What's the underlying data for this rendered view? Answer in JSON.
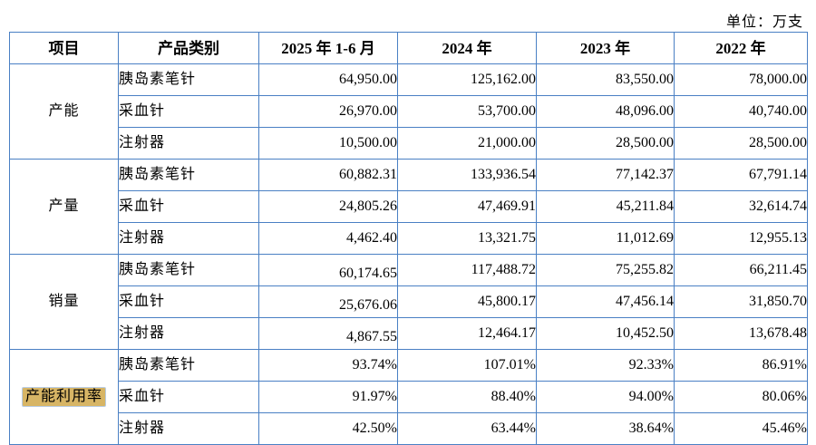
{
  "unit_label": "单位：万支",
  "colors": {
    "border": "#4a80c4",
    "highlight": "#d7b565"
  },
  "table": {
    "headers": [
      "项目",
      "产品类别",
      "2025 年 1-6 月",
      "2024 年",
      "2023 年",
      "2022 年"
    ],
    "sections": [
      {
        "label": "产能",
        "rows": [
          {
            "product": "胰岛素笔针",
            "values": [
              "64,950.00",
              "125,162.00",
              "83,550.00",
              "78,000.00"
            ]
          },
          {
            "product": "采血针",
            "values": [
              "26,970.00",
              "53,700.00",
              "48,096.00",
              "40,740.00"
            ]
          },
          {
            "product": "注射器",
            "values": [
              "10,500.00",
              "21,000.00",
              "28,500.00",
              "28,500.00"
            ]
          }
        ]
      },
      {
        "label": "产量",
        "rows": [
          {
            "product": "胰岛素笔针",
            "values": [
              "60,882.31",
              "133,936.54",
              "77,142.37",
              "67,791.14"
            ]
          },
          {
            "product": "采血针",
            "values": [
              "24,805.26",
              "47,469.91",
              "45,211.84",
              "32,614.74"
            ]
          },
          {
            "product": "注射器",
            "values": [
              "4,462.40",
              "13,321.75",
              "11,012.69",
              "12,955.13"
            ]
          }
        ]
      },
      {
        "label": "销量",
        "rows": [
          {
            "product": "胰岛素笔针",
            "values": [
              "60,174.65",
              "117,488.72",
              "75,255.82",
              "66,211.45"
            ]
          },
          {
            "product": "采血针",
            "values": [
              "25,676.06",
              "45,800.17",
              "47,456.14",
              "31,850.70"
            ]
          },
          {
            "product": "注射器",
            "values": [
              "4,867.55",
              "12,464.17",
              "10,452.50",
              "13,678.48"
            ]
          }
        ]
      },
      {
        "label": "产能利用率",
        "rows": [
          {
            "product": "胰岛素笔针",
            "values": [
              "93.74%",
              "107.01%",
              "92.33%",
              "86.91%"
            ]
          },
          {
            "product": "采血针",
            "values": [
              "91.97%",
              "88.40%",
              "94.00%",
              "80.06%"
            ]
          },
          {
            "product": "注射器",
            "values": [
              "42.50%",
              "63.44%",
              "38.64%",
              "45.46%"
            ]
          }
        ]
      }
    ]
  }
}
